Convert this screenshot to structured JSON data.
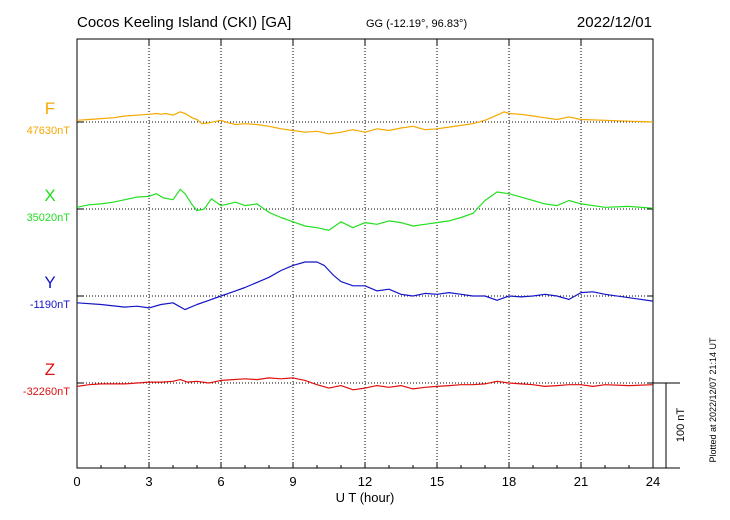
{
  "chart_data": {
    "type": "line",
    "title": "Cocos Keeling Island (CKI)  [GA]",
    "coords": "GG (-12.19°,  96.83°)",
    "date": "2022/12/01",
    "xlabel": "U T (hour)",
    "xlim": [
      0,
      24
    ],
    "xticks": [
      "0",
      "3",
      "6",
      "9",
      "12",
      "15",
      "18",
      "21",
      "24"
    ],
    "grid": true,
    "scale_label": "100 nT",
    "scale_nT": 100,
    "plotted_note": "Plotted at 2022/12/07 21:14 UT",
    "series": [
      {
        "name": "F",
        "baseline_label": "47630nT",
        "color": "#f5a800",
        "points": [
          [
            0,
            2
          ],
          [
            0.5,
            3
          ],
          [
            1,
            4
          ],
          [
            1.5,
            5
          ],
          [
            2,
            7
          ],
          [
            2.5,
            8
          ],
          [
            3,
            9
          ],
          [
            3.3,
            10
          ],
          [
            3.5,
            9
          ],
          [
            3.7,
            10
          ],
          [
            4,
            8
          ],
          [
            4.3,
            12
          ],
          [
            4.5,
            10
          ],
          [
            4.8,
            5
          ],
          [
            5,
            3
          ],
          [
            5.2,
            -2
          ],
          [
            5.5,
            -1
          ],
          [
            6,
            2
          ],
          [
            6.3,
            -1
          ],
          [
            6.6,
            -3
          ],
          [
            7,
            -2
          ],
          [
            7.5,
            -3
          ],
          [
            8,
            -5
          ],
          [
            8.5,
            -8
          ],
          [
            9,
            -10
          ],
          [
            9.5,
            -12
          ],
          [
            10,
            -11
          ],
          [
            10.5,
            -14
          ],
          [
            11,
            -12
          ],
          [
            11.5,
            -9
          ],
          [
            12,
            -12
          ],
          [
            12.5,
            -8
          ],
          [
            13,
            -10
          ],
          [
            13.5,
            -7
          ],
          [
            14,
            -5
          ],
          [
            14.5,
            -9
          ],
          [
            15,
            -8
          ],
          [
            15.5,
            -6
          ],
          [
            16,
            -4
          ],
          [
            16.5,
            -2
          ],
          [
            17,
            2
          ],
          [
            17.5,
            8
          ],
          [
            17.8,
            12
          ],
          [
            18,
            10
          ],
          [
            18.5,
            9
          ],
          [
            19,
            7
          ],
          [
            19.5,
            5
          ],
          [
            20,
            3
          ],
          [
            20.5,
            6
          ],
          [
            21,
            3
          ],
          [
            22,
            2
          ],
          [
            23,
            1
          ],
          [
            24,
            0
          ]
        ]
      },
      {
        "name": "X",
        "baseline_label": "35020nT",
        "color": "#22e022",
        "points": [
          [
            0,
            2
          ],
          [
            0.5,
            5
          ],
          [
            1,
            6
          ],
          [
            1.5,
            8
          ],
          [
            2,
            11
          ],
          [
            2.5,
            14
          ],
          [
            3,
            15
          ],
          [
            3.3,
            18
          ],
          [
            3.6,
            13
          ],
          [
            4,
            11
          ],
          [
            4.3,
            23
          ],
          [
            4.5,
            18
          ],
          [
            4.8,
            5
          ],
          [
            5,
            -2
          ],
          [
            5.3,
            0
          ],
          [
            5.6,
            12
          ],
          [
            6,
            4
          ],
          [
            6.3,
            6
          ],
          [
            6.6,
            8
          ],
          [
            7,
            4
          ],
          [
            7.5,
            6
          ],
          [
            8,
            -4
          ],
          [
            8.5,
            -10
          ],
          [
            9,
            -15
          ],
          [
            9.5,
            -20
          ],
          [
            10,
            -22
          ],
          [
            10.5,
            -25
          ],
          [
            11,
            -15
          ],
          [
            11.5,
            -22
          ],
          [
            12,
            -16
          ],
          [
            12.5,
            -18
          ],
          [
            13,
            -14
          ],
          [
            13.5,
            -16
          ],
          [
            14,
            -20
          ],
          [
            14.5,
            -18
          ],
          [
            15,
            -16
          ],
          [
            15.5,
            -14
          ],
          [
            16,
            -10
          ],
          [
            16.5,
            -5
          ],
          [
            17,
            10
          ],
          [
            17.5,
            20
          ],
          [
            18,
            18
          ],
          [
            18.5,
            14
          ],
          [
            19,
            10
          ],
          [
            19.5,
            6
          ],
          [
            20,
            4
          ],
          [
            20.5,
            10
          ],
          [
            21,
            6
          ],
          [
            22,
            2
          ],
          [
            23,
            3
          ],
          [
            24,
            1
          ]
        ]
      },
      {
        "name": "Y",
        "baseline_label": "-1190nT",
        "color": "#1515c8",
        "points": [
          [
            0,
            -8
          ],
          [
            1,
            -10
          ],
          [
            2,
            -13
          ],
          [
            2.5,
            -12
          ],
          [
            3,
            -14
          ],
          [
            3.5,
            -10
          ],
          [
            4,
            -8
          ],
          [
            4.5,
            -16
          ],
          [
            5,
            -10
          ],
          [
            5.5,
            -5
          ],
          [
            6,
            0
          ],
          [
            6.5,
            5
          ],
          [
            7,
            10
          ],
          [
            7.5,
            16
          ],
          [
            8,
            22
          ],
          [
            8.5,
            30
          ],
          [
            9,
            36
          ],
          [
            9.5,
            40
          ],
          [
            10,
            40
          ],
          [
            10.3,
            36
          ],
          [
            10.7,
            24
          ],
          [
            11,
            17
          ],
          [
            11.5,
            12
          ],
          [
            12,
            12
          ],
          [
            12.5,
            6
          ],
          [
            13,
            8
          ],
          [
            13.5,
            2
          ],
          [
            14,
            0
          ],
          [
            14.5,
            3
          ],
          [
            15,
            2
          ],
          [
            15.5,
            4
          ],
          [
            16,
            2
          ],
          [
            16.5,
            0
          ],
          [
            17,
            0
          ],
          [
            17.5,
            -5
          ],
          [
            18,
            0
          ],
          [
            18.5,
            -1
          ],
          [
            19,
            0
          ],
          [
            19.5,
            2
          ],
          [
            20,
            0
          ],
          [
            20.5,
            -4
          ],
          [
            21,
            4
          ],
          [
            21.5,
            5
          ],
          [
            22,
            2
          ],
          [
            23,
            -2
          ],
          [
            24,
            -6
          ]
        ]
      },
      {
        "name": "Z",
        "baseline_label": "-32260nT",
        "color": "#e01010",
        "points": [
          [
            0,
            -4
          ],
          [
            0.5,
            -2
          ],
          [
            1,
            -1
          ],
          [
            1.5,
            -1
          ],
          [
            2,
            -1
          ],
          [
            2.5,
            0
          ],
          [
            3,
            1
          ],
          [
            3.5,
            1
          ],
          [
            4,
            2
          ],
          [
            4.3,
            4
          ],
          [
            4.6,
            1
          ],
          [
            5,
            2
          ],
          [
            5.5,
            0
          ],
          [
            6,
            3
          ],
          [
            6.5,
            4
          ],
          [
            7,
            5
          ],
          [
            7.5,
            4
          ],
          [
            8,
            6
          ],
          [
            8.5,
            5
          ],
          [
            9,
            6
          ],
          [
            9.5,
            3
          ],
          [
            10,
            -2
          ],
          [
            10.5,
            -6
          ],
          [
            11,
            -3
          ],
          [
            11.5,
            -8
          ],
          [
            12,
            -6
          ],
          [
            12.5,
            -3
          ],
          [
            13,
            -5
          ],
          [
            13.5,
            -3
          ],
          [
            14,
            -7
          ],
          [
            14.5,
            -5
          ],
          [
            15,
            -4
          ],
          [
            15.5,
            -3
          ],
          [
            16,
            -2
          ],
          [
            16.5,
            -2
          ],
          [
            17,
            -1
          ],
          [
            17.5,
            2
          ],
          [
            18,
            0
          ],
          [
            18.5,
            -1
          ],
          [
            19,
            -2
          ],
          [
            19.5,
            -4
          ],
          [
            20,
            -3
          ],
          [
            20.5,
            -2
          ],
          [
            21,
            -2
          ],
          [
            21.5,
            -4
          ],
          [
            22,
            -2
          ],
          [
            23,
            -3
          ],
          [
            24,
            -2
          ]
        ]
      }
    ]
  }
}
